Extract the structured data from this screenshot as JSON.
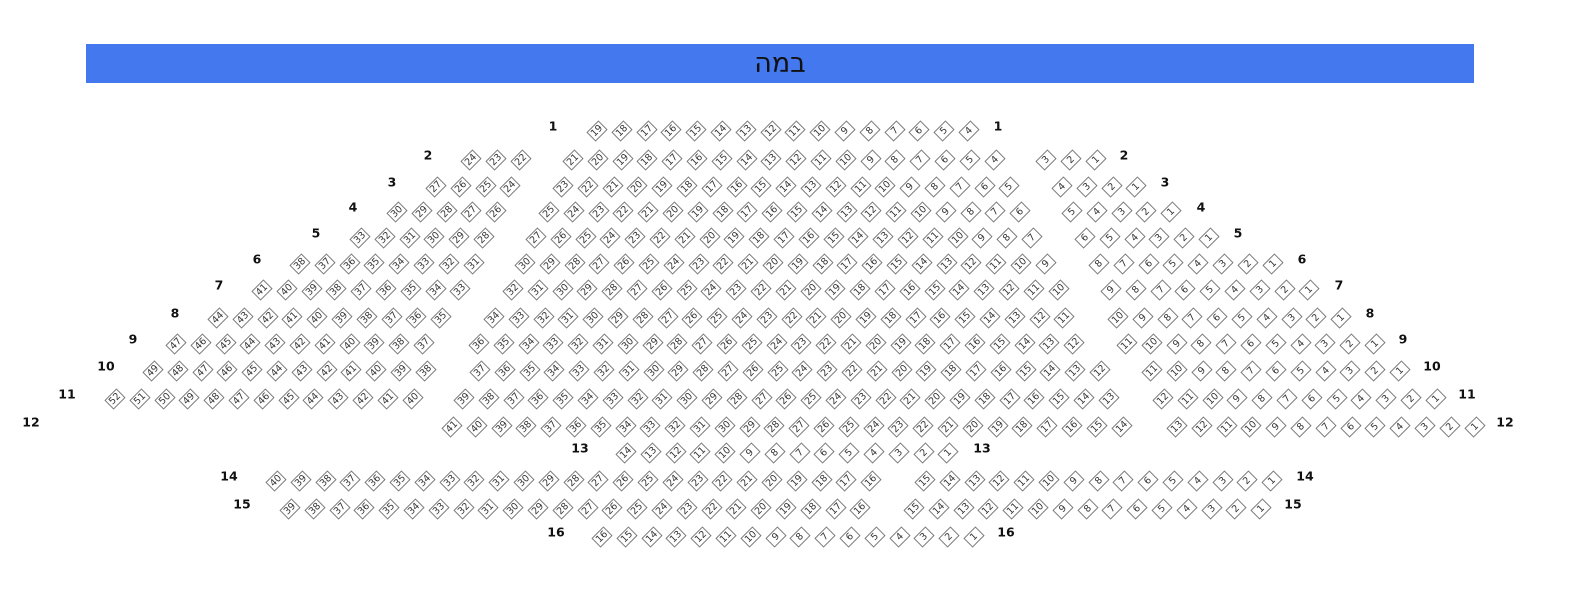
{
  "stage": {
    "label": "במה",
    "color": "#4478ee"
  },
  "rows": [
    {
      "label": "1",
      "sections": [
        {
          "from": 19,
          "to": 4
        }
      ]
    },
    {
      "label": "2",
      "sections": [
        {
          "from": 24,
          "to": 22
        },
        {
          "from": 21,
          "to": 4
        },
        {
          "from": 3,
          "to": 1
        }
      ]
    },
    {
      "label": "3",
      "sections": [
        {
          "from": 27,
          "to": 24
        },
        {
          "from": 23,
          "to": 5
        },
        {
          "from": 4,
          "to": 1
        }
      ]
    },
    {
      "label": "4",
      "sections": [
        {
          "from": 30,
          "to": 26
        },
        {
          "from": 25,
          "to": 6
        },
        {
          "from": 5,
          "to": 1
        }
      ]
    },
    {
      "label": "5",
      "sections": [
        {
          "from": 33,
          "to": 28
        },
        {
          "from": 27,
          "to": 7
        },
        {
          "from": 6,
          "to": 1
        }
      ]
    },
    {
      "label": "6",
      "sections": [
        {
          "from": 38,
          "to": 31
        },
        {
          "from": 30,
          "to": 9
        },
        {
          "from": 8,
          "to": 1
        }
      ]
    },
    {
      "label": "7",
      "sections": [
        {
          "from": 41,
          "to": 33
        },
        {
          "from": 32,
          "to": 10
        },
        {
          "from": 9,
          "to": 1
        }
      ]
    },
    {
      "label": "8",
      "sections": [
        {
          "from": 44,
          "to": 35
        },
        {
          "from": 34,
          "to": 11
        },
        {
          "from": 10,
          "to": 1
        }
      ]
    },
    {
      "label": "9",
      "sections": [
        {
          "from": 47,
          "to": 37
        },
        {
          "from": 36,
          "to": 12
        },
        {
          "from": 11,
          "to": 1
        }
      ]
    },
    {
      "label": "10",
      "sections": [
        {
          "from": 49,
          "to": 38
        },
        {
          "from": 37,
          "to": 12
        },
        {
          "from": 11,
          "to": 1
        }
      ]
    },
    {
      "label": "11",
      "sections": [
        {
          "from": 52,
          "to": 40
        },
        {
          "from": 39,
          "to": 13
        },
        {
          "from": 12,
          "to": 1
        }
      ]
    },
    {
      "label": "12",
      "sections": [
        {
          "from": 41,
          "to": 14
        },
        {
          "from": 13,
          "to": 1
        }
      ]
    },
    {
      "label": "13",
      "sections": [
        {
          "from": 14,
          "to": 1
        }
      ]
    },
    {
      "label": "14",
      "sections": [
        {
          "from": 40,
          "to": 16
        },
        {
          "from": 15,
          "to": 1
        }
      ]
    },
    {
      "label": "15",
      "sections": [
        {
          "from": 39,
          "to": 16
        },
        {
          "from": 15,
          "to": 1
        }
      ]
    },
    {
      "label": "16",
      "sections": [
        {
          "from": 16,
          "to": 1
        }
      ]
    }
  ]
}
